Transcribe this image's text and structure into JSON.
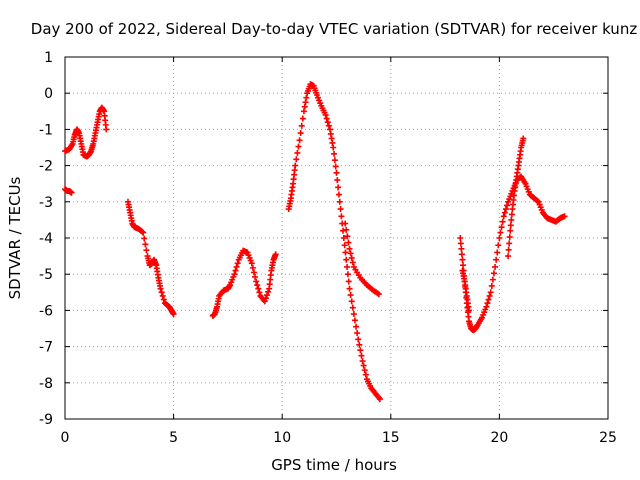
{
  "chart_data": {
    "type": "scatter",
    "title": "Day 200 of 2022, Sidereal Day-to-day VTEC variation (SDTVAR) for receiver kunz",
    "xlabel": "GPS time / hours",
    "ylabel": "SDTVAR / TECUs",
    "xlim": [
      0,
      25
    ],
    "ylim": [
      -9,
      1
    ],
    "xticks": [
      0,
      5,
      10,
      15,
      20,
      25
    ],
    "yticks": [
      1,
      0,
      -1,
      -2,
      -3,
      -4,
      -5,
      -6,
      -7,
      -8,
      -9
    ],
    "xtick_labels": [
      "0",
      "5",
      "10",
      "15",
      "20",
      "25"
    ],
    "ytick_labels": [
      "1",
      "0",
      "-1",
      "-2",
      "-3",
      "-4",
      "-5",
      "-6",
      "-7",
      "-8",
      "-9"
    ],
    "grid": true,
    "marker": "+",
    "color": "#ff0000",
    "series": [
      {
        "name": "seg1a",
        "x": [
          0.0,
          0.2,
          0.35,
          0.45,
          0.55,
          0.65,
          0.75,
          0.85,
          1.0,
          1.1,
          1.2,
          1.3,
          1.4,
          1.5,
          1.6,
          1.7,
          1.8,
          1.9
        ],
        "y": [
          -1.6,
          -1.55,
          -1.4,
          -1.15,
          -1.0,
          -1.1,
          -1.4,
          -1.7,
          -1.75,
          -1.7,
          -1.6,
          -1.4,
          -1.1,
          -0.8,
          -0.5,
          -0.4,
          -0.5,
          -1.0
        ]
      },
      {
        "name": "seg1b",
        "x": [
          0.0,
          0.1,
          0.2,
          0.3
        ],
        "y": [
          -2.65,
          -2.7,
          -2.7,
          -2.75
        ]
      },
      {
        "name": "seg2",
        "x": [
          2.9,
          3.0,
          3.1,
          3.2,
          3.4,
          3.6,
          3.8,
          3.9,
          4.0,
          4.1,
          4.2,
          4.3,
          4.4,
          4.6,
          4.8,
          4.9,
          5.0
        ],
        "y": [
          -3.0,
          -3.3,
          -3.6,
          -3.7,
          -3.75,
          -3.85,
          -4.5,
          -4.75,
          -4.7,
          -4.6,
          -4.75,
          -5.1,
          -5.4,
          -5.8,
          -5.9,
          -6.0,
          -6.1
        ]
      },
      {
        "name": "seg3",
        "x": [
          6.8,
          6.9,
          7.0,
          7.1,
          7.3,
          7.5,
          7.6,
          7.8,
          8.0,
          8.2,
          8.4,
          8.6,
          8.8,
          9.0,
          9.2,
          9.4,
          9.5,
          9.6,
          9.7
        ],
        "y": [
          -6.15,
          -6.1,
          -5.9,
          -5.6,
          -5.45,
          -5.4,
          -5.3,
          -5.0,
          -4.6,
          -4.35,
          -4.4,
          -4.7,
          -5.2,
          -5.6,
          -5.75,
          -5.4,
          -4.9,
          -4.6,
          -4.45
        ]
      },
      {
        "name": "seg4",
        "x": [
          10.3,
          10.4,
          10.5,
          10.6,
          10.8,
          11.0,
          11.15,
          11.3,
          11.45,
          11.6,
          11.8,
          12.0,
          12.2,
          12.35,
          12.5,
          12.65,
          12.8,
          12.95,
          13.1,
          13.3,
          13.5,
          13.7,
          13.9,
          14.1,
          14.3,
          14.5
        ],
        "y": [
          -3.2,
          -2.9,
          -2.5,
          -2.0,
          -1.3,
          -0.5,
          0.0,
          0.25,
          0.2,
          -0.05,
          -0.35,
          -0.6,
          -1.0,
          -1.5,
          -2.2,
          -3.0,
          -3.8,
          -4.6,
          -5.4,
          -6.1,
          -6.8,
          -7.4,
          -7.9,
          -8.15,
          -8.3,
          -8.45
        ]
      },
      {
        "name": "seg4b",
        "x": [
          12.9,
          13.1,
          13.3,
          13.6,
          13.9,
          14.2,
          14.45
        ],
        "y": [
          -3.6,
          -4.3,
          -4.8,
          -5.1,
          -5.3,
          -5.45,
          -5.55
        ]
      },
      {
        "name": "seg5",
        "x": [
          18.2,
          18.3,
          18.4,
          18.5,
          18.6,
          18.7,
          18.8,
          18.9,
          19.0,
          19.2,
          19.4,
          19.6,
          19.8,
          20.0,
          20.2,
          20.4,
          20.6,
          20.8,
          21.0,
          21.2
        ],
        "y": [
          -4.0,
          -4.6,
          -5.2,
          -5.8,
          -6.3,
          -6.5,
          -6.55,
          -6.5,
          -6.4,
          -6.2,
          -5.9,
          -5.5,
          -4.8,
          -4.0,
          -3.4,
          -3.0,
          -2.7,
          -2.4,
          -2.3,
          -2.5
        ]
      },
      {
        "name": "seg5b",
        "x": [
          18.3,
          18.4,
          18.5,
          18.6
        ],
        "y": [
          -4.9,
          -5.2,
          -5.6,
          -6.0
        ]
      },
      {
        "name": "seg5c",
        "x": [
          20.4,
          20.5,
          20.6,
          20.7,
          20.8,
          20.9,
          21.0,
          21.1
        ],
        "y": [
          -4.5,
          -3.8,
          -3.2,
          -2.7,
          -2.3,
          -1.9,
          -1.5,
          -1.25
        ]
      },
      {
        "name": "seg5d",
        "x": [
          21.2,
          21.4,
          21.6,
          21.8,
          22.0,
          22.2,
          22.4,
          22.6,
          22.8,
          23.0
        ],
        "y": [
          -2.5,
          -2.8,
          -2.9,
          -3.0,
          -3.3,
          -3.45,
          -3.5,
          -3.55,
          -3.45,
          -3.4
        ]
      }
    ]
  }
}
